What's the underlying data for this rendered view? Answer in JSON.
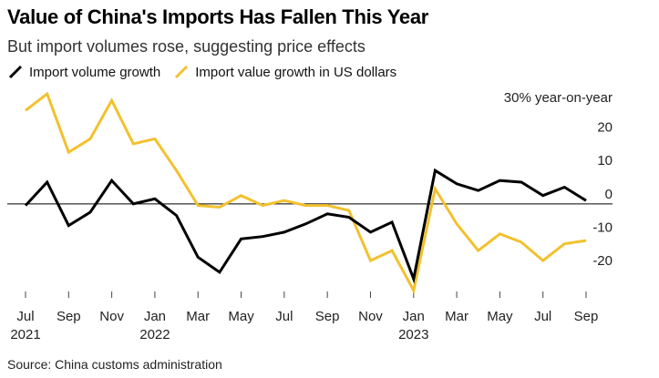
{
  "chart_data": {
    "type": "line",
    "title": "Value of China's Imports Has Fallen This Year",
    "subtitle": "But import volumes rose, suggesting price effects",
    "unit_label": "30% year-on-year",
    "x": [
      "2021-07",
      "2021-08",
      "2021-09",
      "2021-10",
      "2021-11",
      "2021-12",
      "2022-01",
      "2022-02",
      "2022-03",
      "2022-04",
      "2022-05",
      "2022-06",
      "2022-07",
      "2022-08",
      "2022-09",
      "2022-10",
      "2022-11",
      "2022-12",
      "2023-01",
      "2023-02",
      "2023-03",
      "2023-04",
      "2023-05",
      "2023-06",
      "2023-07",
      "2023-08",
      "2023-09"
    ],
    "series": [
      {
        "name": "Import volume growth",
        "color": "#000000",
        "values": [
          -0.5,
          6.5,
          -6.5,
          -2.5,
          7,
          0,
          1.5,
          -3.5,
          -16,
          -20.5,
          -10.5,
          -9.8,
          -8.5,
          -6,
          -3,
          -4,
          -8.5,
          -5.5,
          -22.5,
          10,
          6,
          4,
          7,
          6.5,
          2.5,
          5,
          1
        ]
      },
      {
        "name": "Import value growth in US dollars",
        "color": "#F2C12E",
        "values": [
          28,
          33,
          15.5,
          19.5,
          31,
          18,
          19.5,
          10,
          -0.5,
          -1,
          2.5,
          -0.5,
          1,
          -0.5,
          -0.5,
          -2,
          -17,
          -14,
          -26,
          4.5,
          -6,
          -14,
          -9,
          -11.5,
          -17,
          -12,
          -11
        ]
      }
    ],
    "ylim": [
      -26,
      33
    ],
    "yticks": [
      {
        "value": 20,
        "label": "20"
      },
      {
        "value": 10,
        "label": "10"
      },
      {
        "value": 0,
        "label": "0"
      },
      {
        "value": -10,
        "label": "-10"
      },
      {
        "value": -20,
        "label": "-20"
      }
    ],
    "xticks": [
      {
        "index": 0,
        "label": "Jul",
        "year": "2021"
      },
      {
        "index": 2,
        "label": "Sep",
        "year": ""
      },
      {
        "index": 4,
        "label": "Nov",
        "year": ""
      },
      {
        "index": 6,
        "label": "Jan",
        "year": "2022"
      },
      {
        "index": 8,
        "label": "Mar",
        "year": ""
      },
      {
        "index": 10,
        "label": "May",
        "year": ""
      },
      {
        "index": 12,
        "label": "Jul",
        "year": ""
      },
      {
        "index": 14,
        "label": "Sep",
        "year": ""
      },
      {
        "index": 16,
        "label": "Nov",
        "year": ""
      },
      {
        "index": 18,
        "label": "Jan",
        "year": "2023"
      },
      {
        "index": 20,
        "label": "Mar",
        "year": ""
      },
      {
        "index": 22,
        "label": "May",
        "year": ""
      },
      {
        "index": 24,
        "label": "Jul",
        "year": ""
      },
      {
        "index": 26,
        "label": "Sep",
        "year": ""
      }
    ],
    "legend_position": "top-left",
    "grid": false
  },
  "source": "Source: China customs administration"
}
